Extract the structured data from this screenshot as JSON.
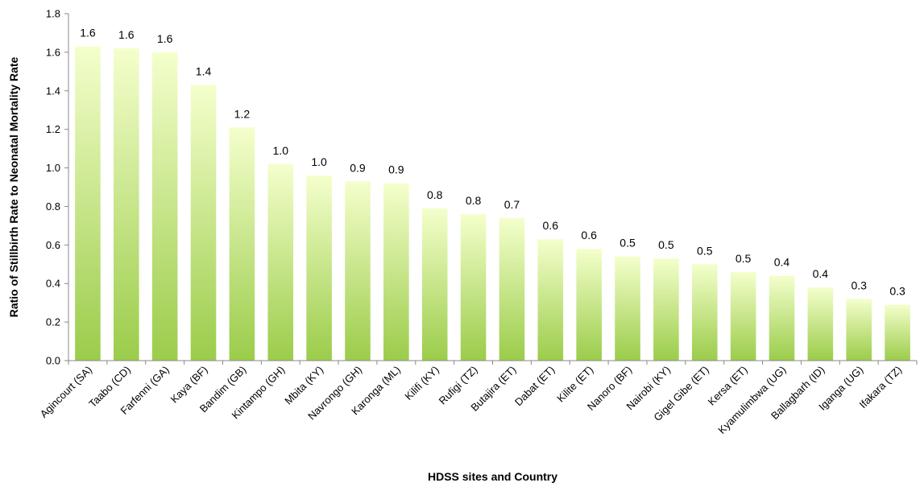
{
  "chart_data": {
    "type": "bar",
    "title": "",
    "xlabel": "HDSS sites and Country",
    "ylabel": "Ratio of Stillbirth Rate to Neonatal Mortality Rate",
    "ylim": [
      0,
      1.8
    ],
    "yticks": [
      "0.0",
      "0.2",
      "0.4",
      "0.6",
      "0.8",
      "1.0",
      "1.2",
      "1.4",
      "1.6",
      "1.8"
    ],
    "grid": false,
    "legend": "none",
    "bar_color_top": "#f4ffcc",
    "bar_color_bottom": "#9bcc4a",
    "categories": [
      "Agincourt (SA)",
      "Taabo (CD)",
      "Farfenni (GA)",
      "Kaya (BF)",
      "Bandim (GB)",
      "Kintampo (GH)",
      "Mbita (KY)",
      "Navrongo (GH)",
      "Karonga (ML)",
      "Kilifi (KY)",
      "Rufigi (TZ)",
      "Butajira (ET)",
      "Dabat (ET)",
      "Kilite (ET)",
      "Nanoro (BF)",
      "Nairobi (KY)",
      "Gigel Gibe (ET)",
      "Kersa (ET)",
      "Kyamulimbwa (UG)",
      "Ballagbarh (ID)",
      "Iganga (UG)",
      "Ifakara (TZ)"
    ],
    "values": [
      1.63,
      1.62,
      1.6,
      1.43,
      1.21,
      1.02,
      0.96,
      0.93,
      0.92,
      0.79,
      0.76,
      0.74,
      0.63,
      0.58,
      0.54,
      0.53,
      0.5,
      0.46,
      0.44,
      0.38,
      0.32,
      0.29
    ],
    "value_labels": [
      "1.6",
      "1.6",
      "1.6",
      "1.4",
      "1.2",
      "1.0",
      "1.0",
      "0.9",
      "0.9",
      "0.8",
      "0.8",
      "0.7",
      "0.6",
      "0.6",
      "0.5",
      "0.5",
      "0.5",
      "0.5",
      "0.4",
      "0.4",
      "0.3",
      "0.3"
    ]
  }
}
